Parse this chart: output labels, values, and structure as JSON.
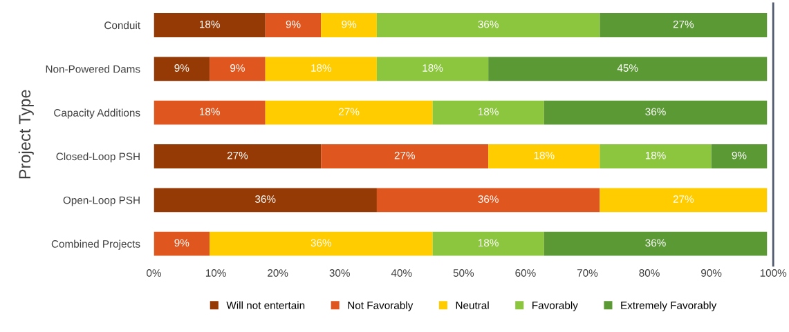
{
  "chart_data": {
    "type": "bar",
    "orientation": "horizontal",
    "stacked": true,
    "ylabel": "Project Type",
    "categories": [
      "Conduit",
      "Non-Powered Dams",
      "Capacity Additions",
      "Closed-Loop PSH",
      "Open-Loop PSH",
      "Combined Projects"
    ],
    "series": [
      {
        "name": "Will not entertain",
        "color": "#953a04",
        "values": [
          18,
          9,
          null,
          27,
          36,
          null
        ],
        "value_labels": [
          "18%",
          "9%",
          null,
          "27%",
          "36%",
          null
        ]
      },
      {
        "name": "Not Favorably",
        "color": "#e0561f",
        "values": [
          9,
          9,
          18,
          27,
          36,
          9
        ],
        "value_labels": [
          "9%",
          "9%",
          "18%",
          "27%",
          "36%",
          "9%"
        ]
      },
      {
        "name": "Neutral",
        "color": "#ffcc00",
        "values": [
          9,
          18,
          27,
          18,
          27,
          36
        ],
        "value_labels": [
          "9%",
          "18%",
          "27%",
          "18%",
          "27%",
          "36%"
        ]
      },
      {
        "name": "Favorably",
        "color": "#8cc63e",
        "values": [
          36,
          18,
          18,
          18,
          null,
          18
        ],
        "value_labels": [
          "36%",
          "18%",
          "18%",
          "18%",
          null,
          "18%"
        ]
      },
      {
        "name": "Extremely Favorably",
        "color": "#5b9935",
        "values": [
          27,
          45,
          36,
          9,
          null,
          36
        ],
        "value_labels": [
          "27%",
          "45%",
          "36%",
          "9%",
          null,
          "36%"
        ]
      }
    ],
    "xlim": [
      0,
      100
    ],
    "xticks": [
      {
        "value": 0,
        "label": "0%"
      },
      {
        "value": 10,
        "label": "10%"
      },
      {
        "value": 20,
        "label": "20%"
      },
      {
        "value": 30,
        "label": "30%"
      },
      {
        "value": 40,
        "label": "40%"
      },
      {
        "value": 50,
        "label": "50%"
      },
      {
        "value": 60,
        "label": "60%"
      },
      {
        "value": 70,
        "label": "70%"
      },
      {
        "value": 80,
        "label": "80%"
      },
      {
        "value": 90,
        "label": "90%"
      },
      {
        "value": 100,
        "label": "100%"
      }
    ],
    "grid": false,
    "legend": "bottom"
  }
}
